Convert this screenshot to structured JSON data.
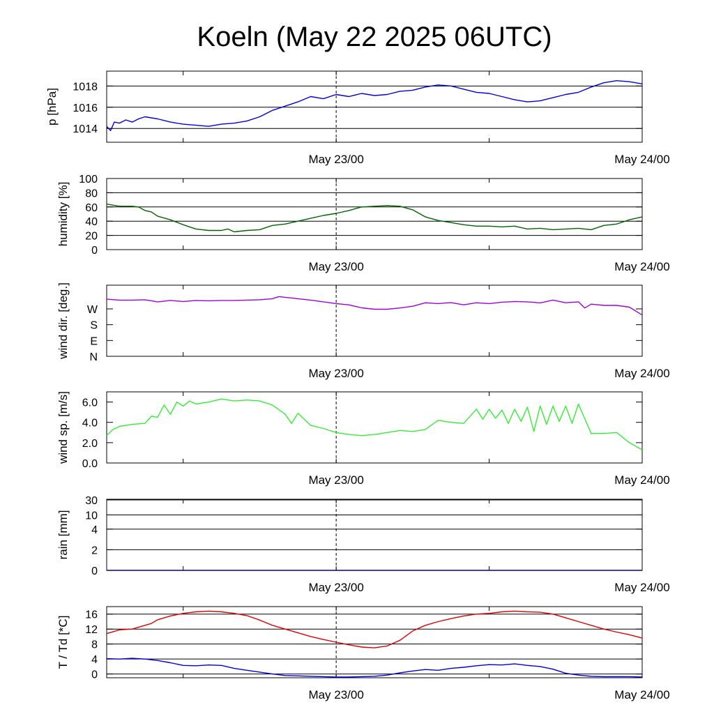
{
  "title": "Koeln (May 22 2025 06UTC)",
  "x_tick_labels": [
    "May 23/00",
    "May 24/00"
  ],
  "chart_data": [
    {
      "type": "line",
      "ylabel": "p [hPa]",
      "x_unit": "hours since May 22 2025 06UTC",
      "xlim": [
        0,
        42
      ],
      "ylim": [
        1012.7,
        1019.4
      ],
      "yticks": [
        1014,
        1016,
        1018
      ],
      "ytick_labels": [
        "1014",
        "1016",
        "1018"
      ],
      "grid": true,
      "series": [
        {
          "color": "#0000e0",
          "x": [
            0,
            0.3,
            0.6,
            1,
            1.5,
            2,
            2.5,
            3,
            3.5,
            4,
            5,
            6,
            7,
            8,
            9,
            10,
            11,
            12,
            13,
            14,
            15,
            16,
            17,
            18,
            19,
            20,
            21,
            22,
            23,
            24,
            25,
            26,
            27,
            28,
            29,
            30,
            31,
            32,
            33,
            34,
            35,
            36,
            37,
            38,
            39,
            40,
            41,
            42
          ],
          "y": [
            1014.2,
            1013.8,
            1014.6,
            1014.5,
            1014.8,
            1014.6,
            1014.9,
            1015.1,
            1015.0,
            1014.9,
            1014.6,
            1014.4,
            1014.3,
            1014.2,
            1014.4,
            1014.5,
            1014.7,
            1015.1,
            1015.7,
            1016.1,
            1016.5,
            1017.0,
            1016.8,
            1017.2,
            1017.0,
            1017.3,
            1017.1,
            1017.2,
            1017.5,
            1017.6,
            1017.9,
            1018.1,
            1018.0,
            1017.7,
            1017.4,
            1017.3,
            1017.0,
            1016.7,
            1016.5,
            1016.6,
            1016.9,
            1017.2,
            1017.4,
            1017.9,
            1018.3,
            1018.5,
            1018.4,
            1018.2
          ]
        }
      ]
    },
    {
      "type": "line",
      "ylabel": "humidity [%]",
      "x_unit": "hours since May 22 2025 06UTC",
      "xlim": [
        0,
        42
      ],
      "ylim": [
        0,
        100
      ],
      "yticks": [
        0,
        20,
        40,
        60,
        80,
        100
      ],
      "ytick_labels": [
        "0",
        "20",
        "40",
        "60",
        "80",
        "100"
      ],
      "grid": true,
      "series": [
        {
          "color": "#006400",
          "x": [
            0,
            1,
            2,
            2.5,
            3,
            3.5,
            4,
            5,
            6,
            7,
            8,
            9,
            9.5,
            10,
            11,
            12,
            13,
            14,
            15,
            16,
            17,
            18,
            19,
            20,
            21,
            22,
            23,
            24,
            25,
            26,
            27,
            28,
            29,
            30,
            31,
            32,
            33,
            34,
            35,
            36,
            37,
            38,
            39,
            40,
            41,
            42
          ],
          "y": [
            64,
            61,
            61,
            60,
            55,
            53,
            47,
            42,
            35,
            29,
            27,
            27,
            29,
            25,
            27,
            28,
            34,
            36,
            40,
            44,
            48,
            51,
            55,
            60,
            61,
            62,
            61,
            56,
            46,
            41,
            38,
            35,
            33,
            33,
            32,
            33,
            29,
            30,
            28,
            29,
            30,
            28,
            34,
            36,
            42,
            46
          ]
        }
      ]
    },
    {
      "type": "line",
      "ylabel": "wind dir. [deg.]",
      "x_unit": "hours since May 22 2025 06UTC",
      "xlim": [
        0,
        42
      ],
      "ylim": [
        0,
        405
      ],
      "yticks": [
        0,
        90,
        180,
        270
      ],
      "ytick_labels": [
        "N",
        "E",
        "S",
        "W"
      ],
      "grid": false,
      "series": [
        {
          "color": "#a000e0",
          "x": [
            0,
            1,
            2,
            3,
            4,
            5,
            6,
            7,
            8,
            9,
            10,
            11,
            12,
            13,
            13.5,
            14,
            15,
            16,
            17,
            18,
            19,
            20,
            21,
            22,
            23,
            24,
            25,
            26,
            27,
            28,
            29,
            30,
            31,
            32,
            33,
            34,
            35,
            36,
            37,
            37.5,
            38,
            39,
            40,
            41,
            42
          ],
          "y": [
            325,
            320,
            320,
            322,
            310,
            318,
            312,
            318,
            316,
            318,
            318,
            320,
            322,
            328,
            340,
            336,
            328,
            320,
            310,
            300,
            293,
            276,
            268,
            268,
            275,
            285,
            305,
            300,
            306,
            293,
            305,
            300,
            308,
            312,
            310,
            304,
            320,
            305,
            310,
            275,
            297,
            290,
            290,
            280,
            235
          ]
        }
      ]
    },
    {
      "type": "line",
      "ylabel": "wind sp. [m/s]",
      "x_unit": "hours since May 22 2025 06UTC",
      "xlim": [
        0,
        42
      ],
      "ylim": [
        0,
        7
      ],
      "yticks": [
        0,
        2,
        4,
        6
      ],
      "ytick_labels": [
        "0.0",
        "2.0",
        "4.0",
        "6.0"
      ],
      "grid": false,
      "series": [
        {
          "color": "#33ee33",
          "x": [
            0,
            0.5,
            1,
            2,
            3,
            3.5,
            4,
            4.5,
            5,
            5.5,
            6,
            6.5,
            7,
            8,
            9,
            10,
            11,
            12,
            13,
            14,
            14.5,
            15,
            16,
            17,
            18,
            19,
            20,
            21,
            22,
            23,
            24,
            25,
            26,
            27,
            28,
            29,
            29.5,
            30,
            30.5,
            31,
            31.5,
            32,
            32.5,
            33,
            33.5,
            34,
            34.5,
            35,
            35.5,
            36,
            36.5,
            37,
            38,
            39,
            40,
            41,
            42
          ],
          "y": [
            2.7,
            3.3,
            3.6,
            3.8,
            3.9,
            4.6,
            4.5,
            5.7,
            4.8,
            6.0,
            5.6,
            6.1,
            5.8,
            6.0,
            6.3,
            6.1,
            6.2,
            6.1,
            5.7,
            4.8,
            3.9,
            4.9,
            3.7,
            3.4,
            3.0,
            2.8,
            2.7,
            2.8,
            3.0,
            3.2,
            3.1,
            3.3,
            4.2,
            4.0,
            3.9,
            5.3,
            4.3,
            5.3,
            4.4,
            5.2,
            3.9,
            5.3,
            4.1,
            5.5,
            3.1,
            5.6,
            3.8,
            5.6,
            4.1,
            5.6,
            3.9,
            5.8,
            2.9,
            2.9,
            3.0,
            2.0,
            1.3
          ]
        }
      ]
    },
    {
      "type": "line",
      "ylabel": "rain [mm]",
      "x_unit": "hours since May 22 2025 06UTC",
      "xlim": [
        0,
        42
      ],
      "yscale": "nonlinear",
      "yticks": [
        0,
        2,
        4,
        10,
        30
      ],
      "ytick_labels": [
        "0",
        "2",
        "4",
        "10",
        "30"
      ],
      "grid": true,
      "series": [
        {
          "color": "#00008b",
          "x": [
            0,
            42
          ],
          "y": [
            0,
            0
          ]
        }
      ]
    },
    {
      "type": "line",
      "ylabel": "T / Td [*C]",
      "x_unit": "hours since May 22 2025 06UTC",
      "xlim": [
        0,
        42
      ],
      "ylim": [
        -1,
        18
      ],
      "yticks": [
        0,
        4,
        8,
        12,
        16
      ],
      "ytick_labels": [
        "0",
        "4",
        "8",
        "12",
        "16"
      ],
      "grid": true,
      "series": [
        {
          "color": "#e00000",
          "x": [
            0,
            1,
            2,
            3,
            3.5,
            4,
            5,
            6,
            7,
            8,
            9,
            10,
            11,
            12,
            13,
            14,
            15,
            16,
            17,
            18,
            19,
            20,
            21,
            22,
            23,
            24,
            25,
            26,
            27,
            28,
            29,
            30,
            31,
            32,
            33,
            34,
            35,
            36,
            37,
            38,
            39,
            40,
            41,
            42
          ],
          "y": [
            10.8,
            11.8,
            12.0,
            13.0,
            13.5,
            14.5,
            15.5,
            16.2,
            16.6,
            16.8,
            16.6,
            16.2,
            15.6,
            14.4,
            13.0,
            12.0,
            11.0,
            10.0,
            9.2,
            8.5,
            7.8,
            7.2,
            7.0,
            7.5,
            9.0,
            11.5,
            13.0,
            14.0,
            14.8,
            15.5,
            16.0,
            16.2,
            16.6,
            16.8,
            16.6,
            16.5,
            16.0,
            15.0,
            14.0,
            13.0,
            12.0,
            11.2,
            10.5,
            9.6
          ]
        },
        {
          "color": "#0000e0",
          "x": [
            0,
            1,
            2,
            3,
            4,
            5,
            6,
            7,
            8,
            9,
            10,
            11,
            12,
            13,
            14,
            15,
            16,
            17,
            18,
            19,
            20,
            21,
            22,
            23,
            24,
            25,
            26,
            27,
            28,
            29,
            30,
            31,
            32,
            33,
            34,
            35,
            36,
            37,
            38,
            39,
            40,
            41,
            42
          ],
          "y": [
            4.1,
            4.0,
            4.2,
            4.0,
            3.6,
            3.0,
            2.3,
            2.2,
            2.4,
            2.3,
            1.5,
            1.0,
            0.5,
            0.0,
            -0.4,
            -0.5,
            -0.6,
            -0.7,
            -0.8,
            -0.8,
            -0.7,
            -0.6,
            -0.3,
            0.3,
            0.8,
            1.2,
            1.0,
            1.5,
            1.8,
            2.2,
            2.5,
            2.4,
            2.7,
            2.3,
            2.0,
            1.3,
            0.2,
            -0.3,
            -0.6,
            -0.7,
            -0.7,
            -0.7,
            -0.8
          ]
        }
      ]
    }
  ]
}
